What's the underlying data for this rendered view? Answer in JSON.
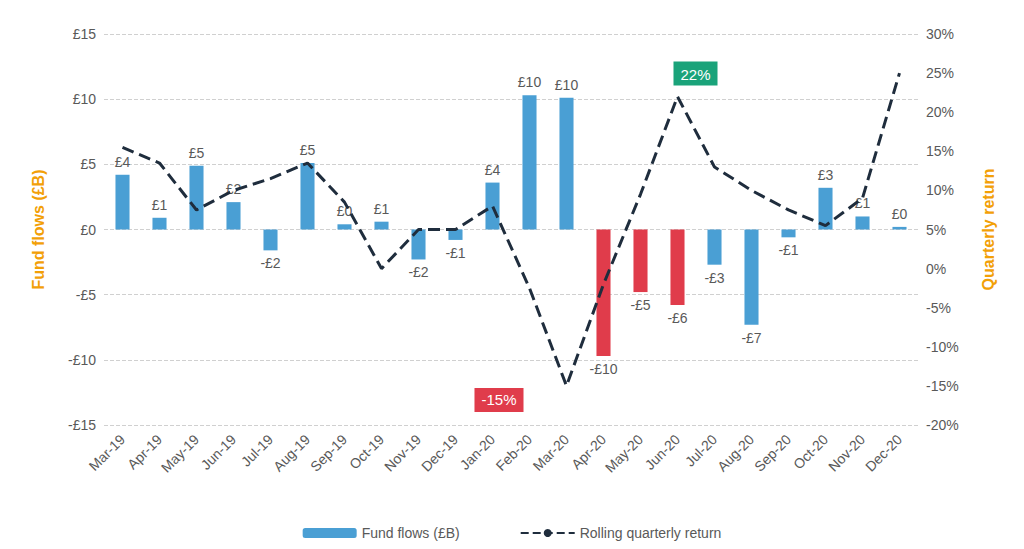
{
  "chart_data": {
    "type": "bar",
    "categories": [
      "Mar-19",
      "Apr-19",
      "May-19",
      "Jun-19",
      "Jul-19",
      "Aug-19",
      "Sep-19",
      "Oct-19",
      "Nov-19",
      "Dec-19",
      "Jan-20",
      "Feb-20",
      "Mar-20",
      "Apr-20",
      "May-20",
      "Jun-20",
      "Jul-20",
      "Aug-20",
      "Sep-20",
      "Oct-20",
      "Nov-20",
      "Dec-20"
    ],
    "y_label": "Fund flows (£B)",
    "y2_label": "Quarterly return",
    "ylim": [
      -15,
      15
    ],
    "yticks": [
      {
        "value": -15,
        "label": "-£15"
      },
      {
        "value": -10,
        "label": "-£10"
      },
      {
        "value": -5,
        "label": "-£5"
      },
      {
        "value": 0,
        "label": "£0"
      },
      {
        "value": 5,
        "label": "£5"
      },
      {
        "value": 10,
        "label": "£10"
      },
      {
        "value": 15,
        "label": "£15"
      }
    ],
    "y2lim": [
      -20,
      30
    ],
    "y2ticks": [
      {
        "value": -20,
        "label": "-20%"
      },
      {
        "value": -15,
        "label": "-15%"
      },
      {
        "value": -10,
        "label": "-10%"
      },
      {
        "value": -5,
        "label": "-5%"
      },
      {
        "value": 0,
        "label": "0%"
      },
      {
        "value": 5,
        "label": "5%"
      },
      {
        "value": 10,
        "label": "10%"
      },
      {
        "value": 15,
        "label": "15%"
      },
      {
        "value": 20,
        "label": "20%"
      },
      {
        "value": 25,
        "label": "25%"
      },
      {
        "value": 30,
        "label": "30%"
      }
    ],
    "grid": true,
    "legend": "bottom",
    "series": [
      {
        "name": "Fund flows (£B)",
        "type": "bar",
        "color": "#4a9fd4",
        "colors": [
          "#4a9fd4",
          "#4a9fd4",
          "#4a9fd4",
          "#4a9fd4",
          "#4a9fd4",
          "#4a9fd4",
          "#4a9fd4",
          "#4a9fd4",
          "#4a9fd4",
          "#4a9fd4",
          "#4a9fd4",
          "#4a9fd4",
          "#4a9fd4",
          "#e03c4b",
          "#e03c4b",
          "#e03c4b",
          "#4a9fd4",
          "#4a9fd4",
          "#4a9fd4",
          "#4a9fd4",
          "#4a9fd4",
          "#4a9fd4"
        ],
        "values": [
          4.2,
          0.9,
          4.9,
          2.1,
          -1.6,
          5.1,
          0.4,
          0.6,
          -2.3,
          -0.8,
          3.6,
          10.3,
          10.1,
          -9.7,
          -4.8,
          -5.8,
          -2.7,
          -7.3,
          -0.6,
          3.2,
          1.0,
          0.2
        ],
        "data_labels": true,
        "value_labels": [
          "£4",
          "£1",
          "£5",
          "£2",
          "-£2",
          "£5",
          "£0",
          "£1",
          "-£2",
          "-£1",
          "£4",
          "£10",
          "£10",
          "-£10",
          "-£5",
          "-£6",
          "-£3",
          "-£7",
          "-£1",
          "£3",
          "£1",
          "£0"
        ]
      },
      {
        "name": "Rolling quarterly return",
        "type": "line",
        "axis": "y2",
        "color": "#1f2d3d",
        "line_style": "dashed",
        "values": [
          15.5,
          13.5,
          7.5,
          10,
          11.5,
          13.5,
          8.5,
          0,
          5,
          5,
          8,
          -2.5,
          -15,
          -2,
          9.5,
          22,
          13,
          10,
          7.5,
          5.5,
          9,
          25
        ],
        "annotations": [
          {
            "category": "Jun-20",
            "label": "22%",
            "color": "#1aa37a"
          },
          {
            "category": "Mar-20",
            "label": "-15%",
            "color": "#e03c4b"
          }
        ]
      }
    ]
  }
}
